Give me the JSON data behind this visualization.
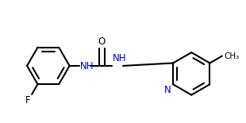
{
  "background": "#ffffff",
  "bond_color": "#000000",
  "bond_width": 1.5,
  "font_size": 8.5,
  "N_color": "#0000cd",
  "O_color": "#000000",
  "F_color": "#000000",
  "figsize": [
    3.1,
    1.55
  ],
  "dpi": 100,
  "xlim": [
    0.0,
    3.1
  ],
  "ylim": [
    0.2,
    1.55
  ]
}
